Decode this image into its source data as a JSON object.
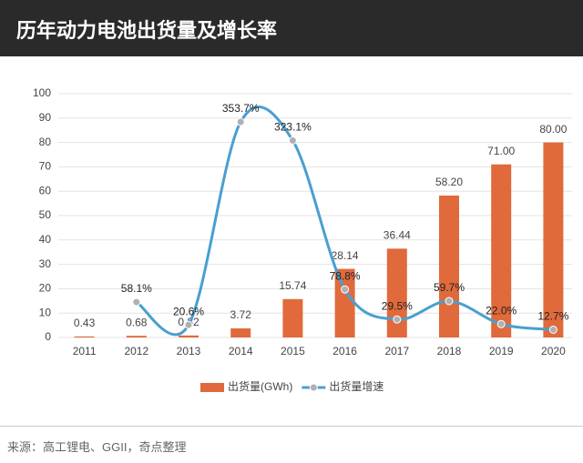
{
  "chart_data": {
    "type": "bar_line",
    "title": "历年动力电池出货量及增长率",
    "source": "来源：高工锂电、GGII，奇点整理",
    "categories": [
      "2011",
      "2012",
      "2013",
      "2014",
      "2015",
      "2016",
      "2017",
      "2018",
      "2019",
      "2020"
    ],
    "series": [
      {
        "name": "出货量(GWh)",
        "type": "bar",
        "color": "#e06a3b",
        "values": [
          0.43,
          0.68,
          0.82,
          3.72,
          15.74,
          28.14,
          36.44,
          58.2,
          71,
          80
        ],
        "value_labels": [
          "0.43",
          "0.68",
          "0.82",
          "3.72",
          "15.74",
          "28.14",
          "36.44",
          "58.20",
          "71.00",
          "80.00"
        ]
      },
      {
        "name": "出货量增速",
        "type": "line",
        "axis": "y2",
        "color": "#4a9fd0",
        "marker_color": "#b0b0b0",
        "values": [
          null,
          58.1,
          20.6,
          353.7,
          323.1,
          78.8,
          29.5,
          59.7,
          22.0,
          12.7
        ],
        "value_labels": [
          null,
          "58.1%",
          "20.6%",
          "353.7%",
          "323.1%",
          "78.8%",
          "29.5%",
          "59.7%",
          "22.0%",
          "12.7%"
        ]
      }
    ],
    "ylim": [
      0,
      100
    ],
    "yticks": [
      0,
      10,
      20,
      30,
      40,
      50,
      60,
      70,
      80,
      90,
      100
    ],
    "y2lim": [
      0,
      400
    ],
    "grid": true
  }
}
